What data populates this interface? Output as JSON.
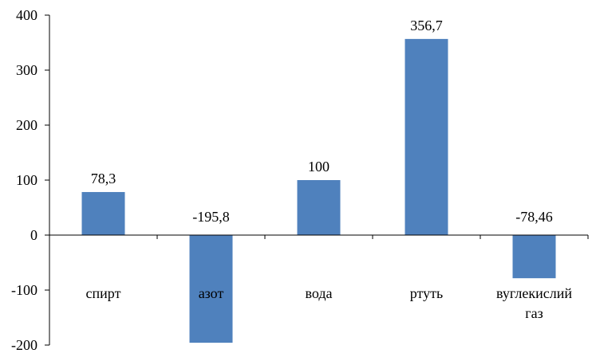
{
  "chart_data": {
    "type": "bar",
    "categories": [
      "спирт",
      "азот",
      "вода",
      "ртуть",
      "вуглекислий газ"
    ],
    "values": [
      78.3,
      -195.8,
      100,
      356.7,
      -78.46
    ],
    "data_labels": [
      "78,3",
      "-195,8",
      "100",
      "356,7",
      "-78,46"
    ],
    "ylim": [
      -200,
      400
    ],
    "yticks": [
      400,
      300,
      200,
      100,
      0,
      -100,
      -200
    ],
    "ytick_labels": [
      "400",
      "300",
      "200",
      "100",
      "0",
      "-100",
      "-200"
    ],
    "title": "",
    "xlabel": "",
    "ylabel": "",
    "grid": false,
    "bar_color": "#4f81bd",
    "axis_color": "#000000"
  }
}
